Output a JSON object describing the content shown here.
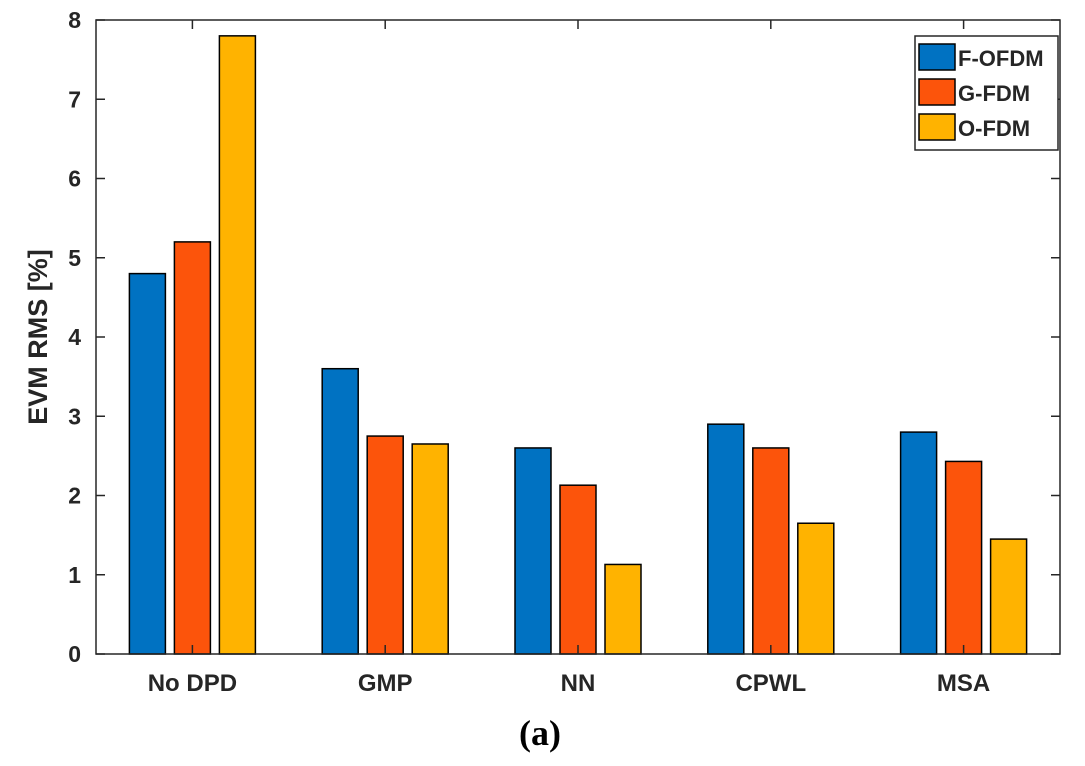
{
  "chart_data": {
    "type": "bar",
    "title": "",
    "caption": "(a)",
    "xlabel": "",
    "ylabel": "EVM RMS [%]",
    "ylim": [
      0,
      8
    ],
    "yticks": [
      "0",
      "1",
      "2",
      "3",
      "4",
      "5",
      "6",
      "7",
      "8"
    ],
    "categories": [
      "No DPD",
      "GMP",
      "NN",
      "CPWL",
      "MSA"
    ],
    "series": [
      {
        "name": "F-OFDM",
        "color": "#0072C2",
        "values": [
          4.8,
          3.6,
          2.6,
          2.9,
          2.8
        ]
      },
      {
        "name": "G-FDM",
        "color": "#FC540B",
        "values": [
          5.2,
          2.75,
          2.13,
          2.6,
          2.43
        ]
      },
      {
        "name": "O-FDM",
        "color": "#FFB300",
        "values": [
          7.8,
          2.65,
          1.13,
          1.65,
          1.45
        ]
      }
    ],
    "grid": false,
    "legend_position": "top-right"
  }
}
